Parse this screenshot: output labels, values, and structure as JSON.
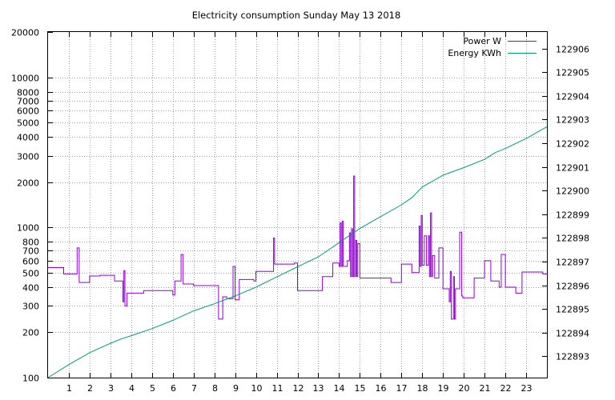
{
  "chart_data": {
    "type": "line",
    "title": "Electricity consumption Sunday May 13 2018",
    "xlabel": "",
    "ylabel": "",
    "xlim": [
      0,
      24
    ],
    "ylim_left": [
      100,
      20000
    ],
    "ylim_right": [
      122892.1,
      122906.7
    ],
    "log_left": true,
    "grid": true,
    "legend_position": "top-right",
    "x_ticks": [
      {
        "value": 1,
        "label": "1"
      },
      {
        "value": 2,
        "label": "2"
      },
      {
        "value": 3,
        "label": "3"
      },
      {
        "value": 4,
        "label": "4"
      },
      {
        "value": 5,
        "label": "5"
      },
      {
        "value": 6,
        "label": "6"
      },
      {
        "value": 7,
        "label": "7"
      },
      {
        "value": 8,
        "label": "8"
      },
      {
        "value": 9,
        "label": "9"
      },
      {
        "value": 10,
        "label": "10"
      },
      {
        "value": 11,
        "label": "11"
      },
      {
        "value": 12,
        "label": "12"
      },
      {
        "value": 13,
        "label": "13"
      },
      {
        "value": 14,
        "label": "14"
      },
      {
        "value": 15,
        "label": "15"
      },
      {
        "value": 16,
        "label": "16"
      },
      {
        "value": 17,
        "label": "17"
      },
      {
        "value": 18,
        "label": "18"
      },
      {
        "value": 19,
        "label": "19"
      },
      {
        "value": 20,
        "label": "20"
      },
      {
        "value": 21,
        "label": "21"
      },
      {
        "value": 22,
        "label": "22"
      },
      {
        "value": 23,
        "label": "23"
      }
    ],
    "y_ticks_left": [
      {
        "value": 100,
        "label": "100"
      },
      {
        "value": 200,
        "label": "200"
      },
      {
        "value": 300,
        "label": "300"
      },
      {
        "value": 400,
        "label": "400"
      },
      {
        "value": 500,
        "label": "500"
      },
      {
        "value": 600,
        "label": "600"
      },
      {
        "value": 700,
        "label": "700"
      },
      {
        "value": 800,
        "label": "800"
      },
      {
        "value": 1000,
        "label": "1000"
      },
      {
        "value": 2000,
        "label": "2000"
      },
      {
        "value": 3000,
        "label": "3000"
      },
      {
        "value": 4000,
        "label": "4000"
      },
      {
        "value": 5000,
        "label": "5000"
      },
      {
        "value": 6000,
        "label": "6000"
      },
      {
        "value": 7000,
        "label": "7000"
      },
      {
        "value": 8000,
        "label": "8000"
      },
      {
        "value": 10000,
        "label": "10000"
      },
      {
        "value": 20000,
        "label": "20000"
      }
    ],
    "y_ticks_right": [
      {
        "value": 122893,
        "label": "122893"
      },
      {
        "value": 122894,
        "label": "122894"
      },
      {
        "value": 122895,
        "label": "122895"
      },
      {
        "value": 122896,
        "label": "122896"
      },
      {
        "value": 122897,
        "label": "122897"
      },
      {
        "value": 122898,
        "label": "122898"
      },
      {
        "value": 122899,
        "label": "122899"
      },
      {
        "value": 122900,
        "label": "122900"
      },
      {
        "value": 122901,
        "label": "122901"
      },
      {
        "value": 122902,
        "label": "122902"
      },
      {
        "value": 122903,
        "label": "122903"
      },
      {
        "value": 122904,
        "label": "122904"
      },
      {
        "value": 122905,
        "label": "122905"
      },
      {
        "value": 122906,
        "label": "122906"
      }
    ],
    "series": [
      {
        "name": "Power W",
        "color": "#9400d3",
        "axis": "left",
        "step": true,
        "x": [
          0,
          0.75,
          1.3,
          1.4,
          1.5,
          2.0,
          2.5,
          3.0,
          3.2,
          3.6,
          3.65,
          3.7,
          3.8,
          4.2,
          4.6,
          5.0,
          5.5,
          5.9,
          6.0,
          6.1,
          6.3,
          6.4,
          6.5,
          7.0,
          7.5,
          8.0,
          8.2,
          8.4,
          8.6,
          8.8,
          8.9,
          9.0,
          9.2,
          9.5,
          9.9,
          10.0,
          10.5,
          10.85,
          10.9,
          11.5,
          11.85,
          12.0,
          12.5,
          13.0,
          13.2,
          13.5,
          13.7,
          14.0,
          14.05,
          14.1,
          14.15,
          14.2,
          14.3,
          14.4,
          14.5,
          14.55,
          14.6,
          14.65,
          14.7,
          14.75,
          14.8,
          14.85,
          14.9,
          15.0,
          15.5,
          16.0,
          16.5,
          17.0,
          17.5,
          17.8,
          17.85,
          17.9,
          17.95,
          18.0,
          18.1,
          18.2,
          18.3,
          18.35,
          18.4,
          18.45,
          18.5,
          18.6,
          18.8,
          19.0,
          19.1,
          19.3,
          19.35,
          19.4,
          19.5,
          19.55,
          19.6,
          19.8,
          19.9,
          19.95,
          20.0,
          20.2,
          20.5,
          20.9,
          21.0,
          21.3,
          21.5,
          21.7,
          21.8,
          22.0,
          22.4,
          22.5,
          22.8,
          23.0,
          23.5,
          23.8,
          24.0
        ],
        "y": [
          540,
          490,
          490,
          730,
          430,
          475,
          480,
          480,
          440,
          320,
          515,
          300,
          365,
          365,
          380,
          380,
          380,
          380,
          355,
          440,
          440,
          660,
          420,
          410,
          410,
          410,
          245,
          345,
          335,
          335,
          550,
          330,
          450,
          450,
          440,
          510,
          510,
          850,
          570,
          570,
          580,
          380,
          380,
          380,
          470,
          470,
          580,
          550,
          1070,
          550,
          1100,
          550,
          550,
          600,
          920,
          470,
          980,
          470,
          2200,
          470,
          820,
          470,
          780,
          460,
          460,
          460,
          430,
          570,
          500,
          500,
          1020,
          550,
          1200,
          560,
          880,
          560,
          880,
          470,
          1250,
          470,
          650,
          460,
          730,
          390,
          390,
          320,
          510,
          245,
          470,
          245,
          390,
          930,
          350,
          340,
          340,
          340,
          460,
          460,
          600,
          440,
          440,
          400,
          660,
          400,
          400,
          365,
          505,
          505,
          505,
          490,
          495
        ]
      },
      {
        "name": "Energy KWh",
        "color": "#009e73",
        "axis": "right",
        "step": false,
        "x": [
          0,
          1,
          2,
          3,
          3.5,
          4,
          5,
          6,
          7,
          8,
          9,
          10,
          11,
          12,
          13,
          14,
          15,
          16,
          17,
          17.5,
          18,
          19,
          20,
          21,
          21.5,
          22,
          23,
          24
        ],
        "y": [
          122892.1,
          122892.65,
          122893.15,
          122893.55,
          122893.73,
          122893.87,
          122894.17,
          122894.52,
          122894.92,
          122895.22,
          122895.55,
          122895.92,
          122896.35,
          122896.78,
          122897.2,
          122897.8,
          122898.4,
          122898.9,
          122899.4,
          122899.7,
          122900.15,
          122900.65,
          122900.97,
          122901.32,
          122901.6,
          122901.78,
          122902.2,
          122902.7
        ]
      }
    ]
  }
}
